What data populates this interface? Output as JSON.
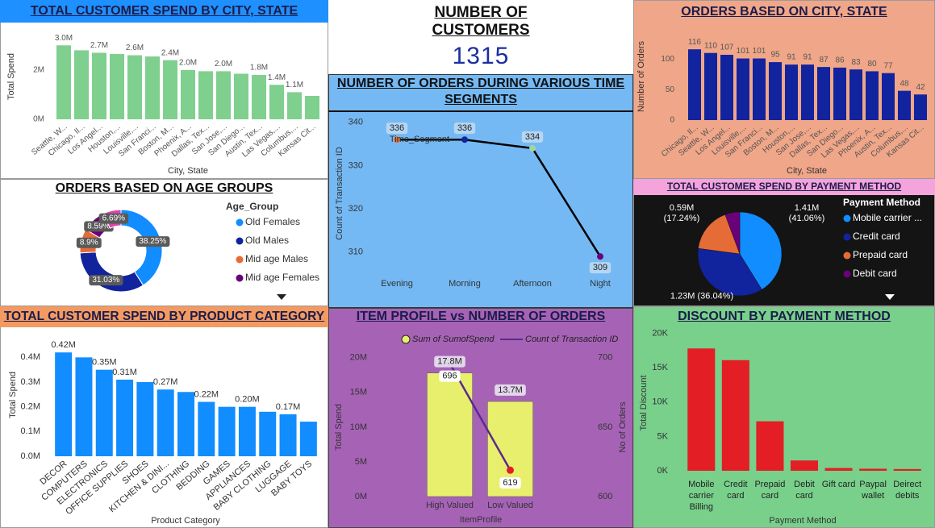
{
  "kpi": {
    "title": "NUMBER OF CUSTOMERS",
    "value": 1315
  },
  "chart_data": [
    {
      "type": "bar",
      "title": "TOTAL CUSTOMER SPEND BY CITY, STATE",
      "x_label": "City, State",
      "y_label": "Total Spend",
      "categories": [
        "Seattle, W...",
        "Chicago, Il...",
        "Los Angel...",
        "Houston,...",
        "Louisville,...",
        "San Franci...",
        "Boston, M...",
        "Phoenix, A...",
        "Dallas, Tex...",
        "San Jose,...",
        "San Diego...",
        "Austin, Tex...",
        "Las Vegas,...",
        "Columbus,...",
        "Kansas Cit..."
      ],
      "values": [
        3000000,
        2800000,
        2700000,
        2650000,
        2600000,
        2550000,
        2400000,
        2000000,
        1950000,
        1950000,
        1850000,
        1800000,
        1400000,
        1100000,
        950000
      ],
      "value_labels": [
        "3.0M",
        null,
        "2.7M",
        null,
        "2.6M",
        null,
        "2.4M",
        "2.0M",
        null,
        "2.0M",
        null,
        "1.8M",
        "1.4M",
        "1.1M",
        null
      ],
      "color": "#7fcf8e",
      "ylim": [
        0,
        3500000
      ],
      "yticks": [
        {
          "value": 0,
          "label": "0M"
        },
        {
          "value": 2000000,
          "label": "2M"
        }
      ]
    },
    {
      "type": "line",
      "title": "NUMBER OF ORDERS DURING VARIOUS TIME SEGMENTS",
      "x_label": "Time_Segment",
      "y_label": "Count of Transaction ID",
      "categories": [
        "Evening",
        "Morning",
        "Afternoon",
        "Night"
      ],
      "values": [
        336,
        336,
        334,
        309
      ],
      "color": "#000000",
      "point_colors": [
        "#e66c37",
        "#12239e",
        "#9fd89a",
        "#6b007b"
      ],
      "ylim": [
        304,
        342
      ],
      "yticks": [
        310,
        320,
        330,
        340
      ]
    },
    {
      "type": "bar",
      "title": "ORDERS BASED ON CITY, STATE",
      "x_label": "City, State",
      "y_label": "Number of Orders",
      "categories": [
        "Chicago, Il...",
        "Seattle, W...",
        "Los Angel...",
        "Louisville,...",
        "San Franci...",
        "Boston, M...",
        "Houston,...",
        "San Jose,...",
        "Dallas, Tex...",
        "San Diego...",
        "Las Vegas,...",
        "Phoenix, A...",
        "Austin, Tex...",
        "Columbus,...",
        "Kansas Cit..."
      ],
      "values": [
        116,
        110,
        107,
        101,
        101,
        95,
        91,
        91,
        87,
        86,
        83,
        80,
        77,
        48,
        42
      ],
      "data_labels": true,
      "color": "#12239e",
      "ylim": [
        0,
        140
      ],
      "yticks": [
        0,
        50,
        100
      ]
    },
    {
      "type": "donut",
      "title": "ORDERS BASED ON AGE GROUPS",
      "legend_title": "Age_Group",
      "labels": [
        "Old Females",
        "Old Males",
        "Mid age Males",
        "Mid age Females",
        null
      ],
      "values": [
        38.25,
        31.03,
        8.9,
        8.59,
        6.69
      ],
      "value_labels": [
        "38.25%",
        "31.03%",
        "8.9%",
        "8.59%",
        "6.69%"
      ],
      "colors": [
        "#118dff",
        "#12239e",
        "#e66c37",
        "#6b007b",
        "#e044a7"
      ]
    },
    {
      "type": "pie",
      "title": "TOTAL CUSTOMER SPEND BY PAYMENT METHOD",
      "legend_title": "Payment Method",
      "labels": [
        "Mobile carrier ...",
        "Credit card",
        "Prepaid card",
        "Debit card"
      ],
      "values": [
        1410000,
        1230000,
        590000,
        194000
      ],
      "value_labels": [
        "1.41M (41.06%)",
        "1.23M (36.04%)",
        "0.59M (17.24%)",
        null
      ],
      "colors": [
        "#118dff",
        "#12239e",
        "#e66c37",
        "#6b007b"
      ]
    },
    {
      "type": "bar",
      "title": "TOTAL CUSTOMER SPEND BY PRODUCT CATEGORY",
      "x_label": "Product Category",
      "y_label": "Total Spend",
      "categories": [
        "DECOR",
        "COMPUTERS",
        "ELECTRONICS",
        "OFFICE SUPPLIES",
        "SHOES",
        "KITCHEN & DINI...",
        "CLOTHING",
        "BEDDING",
        "GAMES",
        "APPLIANCES",
        "BABY CLOTHING",
        "LUGGAGE",
        "BABY TOYS"
      ],
      "values": [
        420000,
        400000,
        350000,
        310000,
        300000,
        270000,
        260000,
        220000,
        200000,
        200000,
        180000,
        170000,
        140000
      ],
      "value_labels": [
        "0.42M",
        null,
        "0.35M",
        "0.31M",
        null,
        "0.27M",
        null,
        "0.22M",
        null,
        "0.20M",
        null,
        "0.17M",
        null
      ],
      "color": "#118dff",
      "ylim": [
        0,
        450000
      ],
      "yticks": [
        {
          "value": 0,
          "label": "0.0M"
        },
        {
          "value": 100000,
          "label": "0.1M"
        },
        {
          "value": 200000,
          "label": "0.2M"
        },
        {
          "value": 300000,
          "label": "0.3M"
        },
        {
          "value": 400000,
          "label": "0.4M"
        }
      ]
    },
    {
      "type": "combo",
      "title": "ITEM PROFILE vs NUMBER OF ORDERS",
      "x_label": "ItemProfile",
      "y_label": "Total Spend",
      "y2_label": "No of Orders",
      "categories": [
        "High Valued",
        "Low Valued"
      ],
      "series": [
        {
          "name": "Sum of SumofSpend",
          "kind": "bar",
          "color": "#e8ef6c",
          "values": [
            17800000,
            13700000
          ],
          "value_labels": [
            "17.8M",
            "13.7M"
          ]
        },
        {
          "name": "Count of Transaction ID",
          "kind": "line",
          "axis": "y2",
          "color": "#5b2a8f",
          "point_colors": [
            "#f4eef6",
            "#e02020"
          ],
          "values": [
            696,
            619
          ]
        }
      ],
      "ylim": [
        0,
        21600000
      ],
      "yticks": [
        {
          "value": 0,
          "label": "0M"
        },
        {
          "value": 5000000,
          "label": "5M"
        },
        {
          "value": 10000000,
          "label": "10M"
        },
        {
          "value": 15000000,
          "label": "15M"
        },
        {
          "value": 20000000,
          "label": "20M"
        }
      ],
      "y2lim": [
        600,
        708
      ],
      "y2ticks": [
        600,
        650,
        700
      ]
    },
    {
      "type": "bar",
      "title": "DISCOUNT BY PAYMENT METHOD",
      "x_label": "Payment Method",
      "y_label": "Total Discount",
      "categories": [
        "Mobile carrier Billing",
        "Credit card",
        "Prepaid card",
        "Debit card",
        "Gift card",
        "Paypal wallet",
        "Deirect debits"
      ],
      "values": [
        17800,
        16100,
        7200,
        1500,
        400,
        300,
        250
      ],
      "color": "#e31e24",
      "ylim": [
        0,
        21000
      ],
      "yticks": [
        {
          "value": 0,
          "label": "0K"
        },
        {
          "value": 5000,
          "label": "5K"
        },
        {
          "value": 10000,
          "label": "10K"
        },
        {
          "value": 15000,
          "label": "15K"
        },
        {
          "value": 20000,
          "label": "20K"
        }
      ]
    }
  ]
}
